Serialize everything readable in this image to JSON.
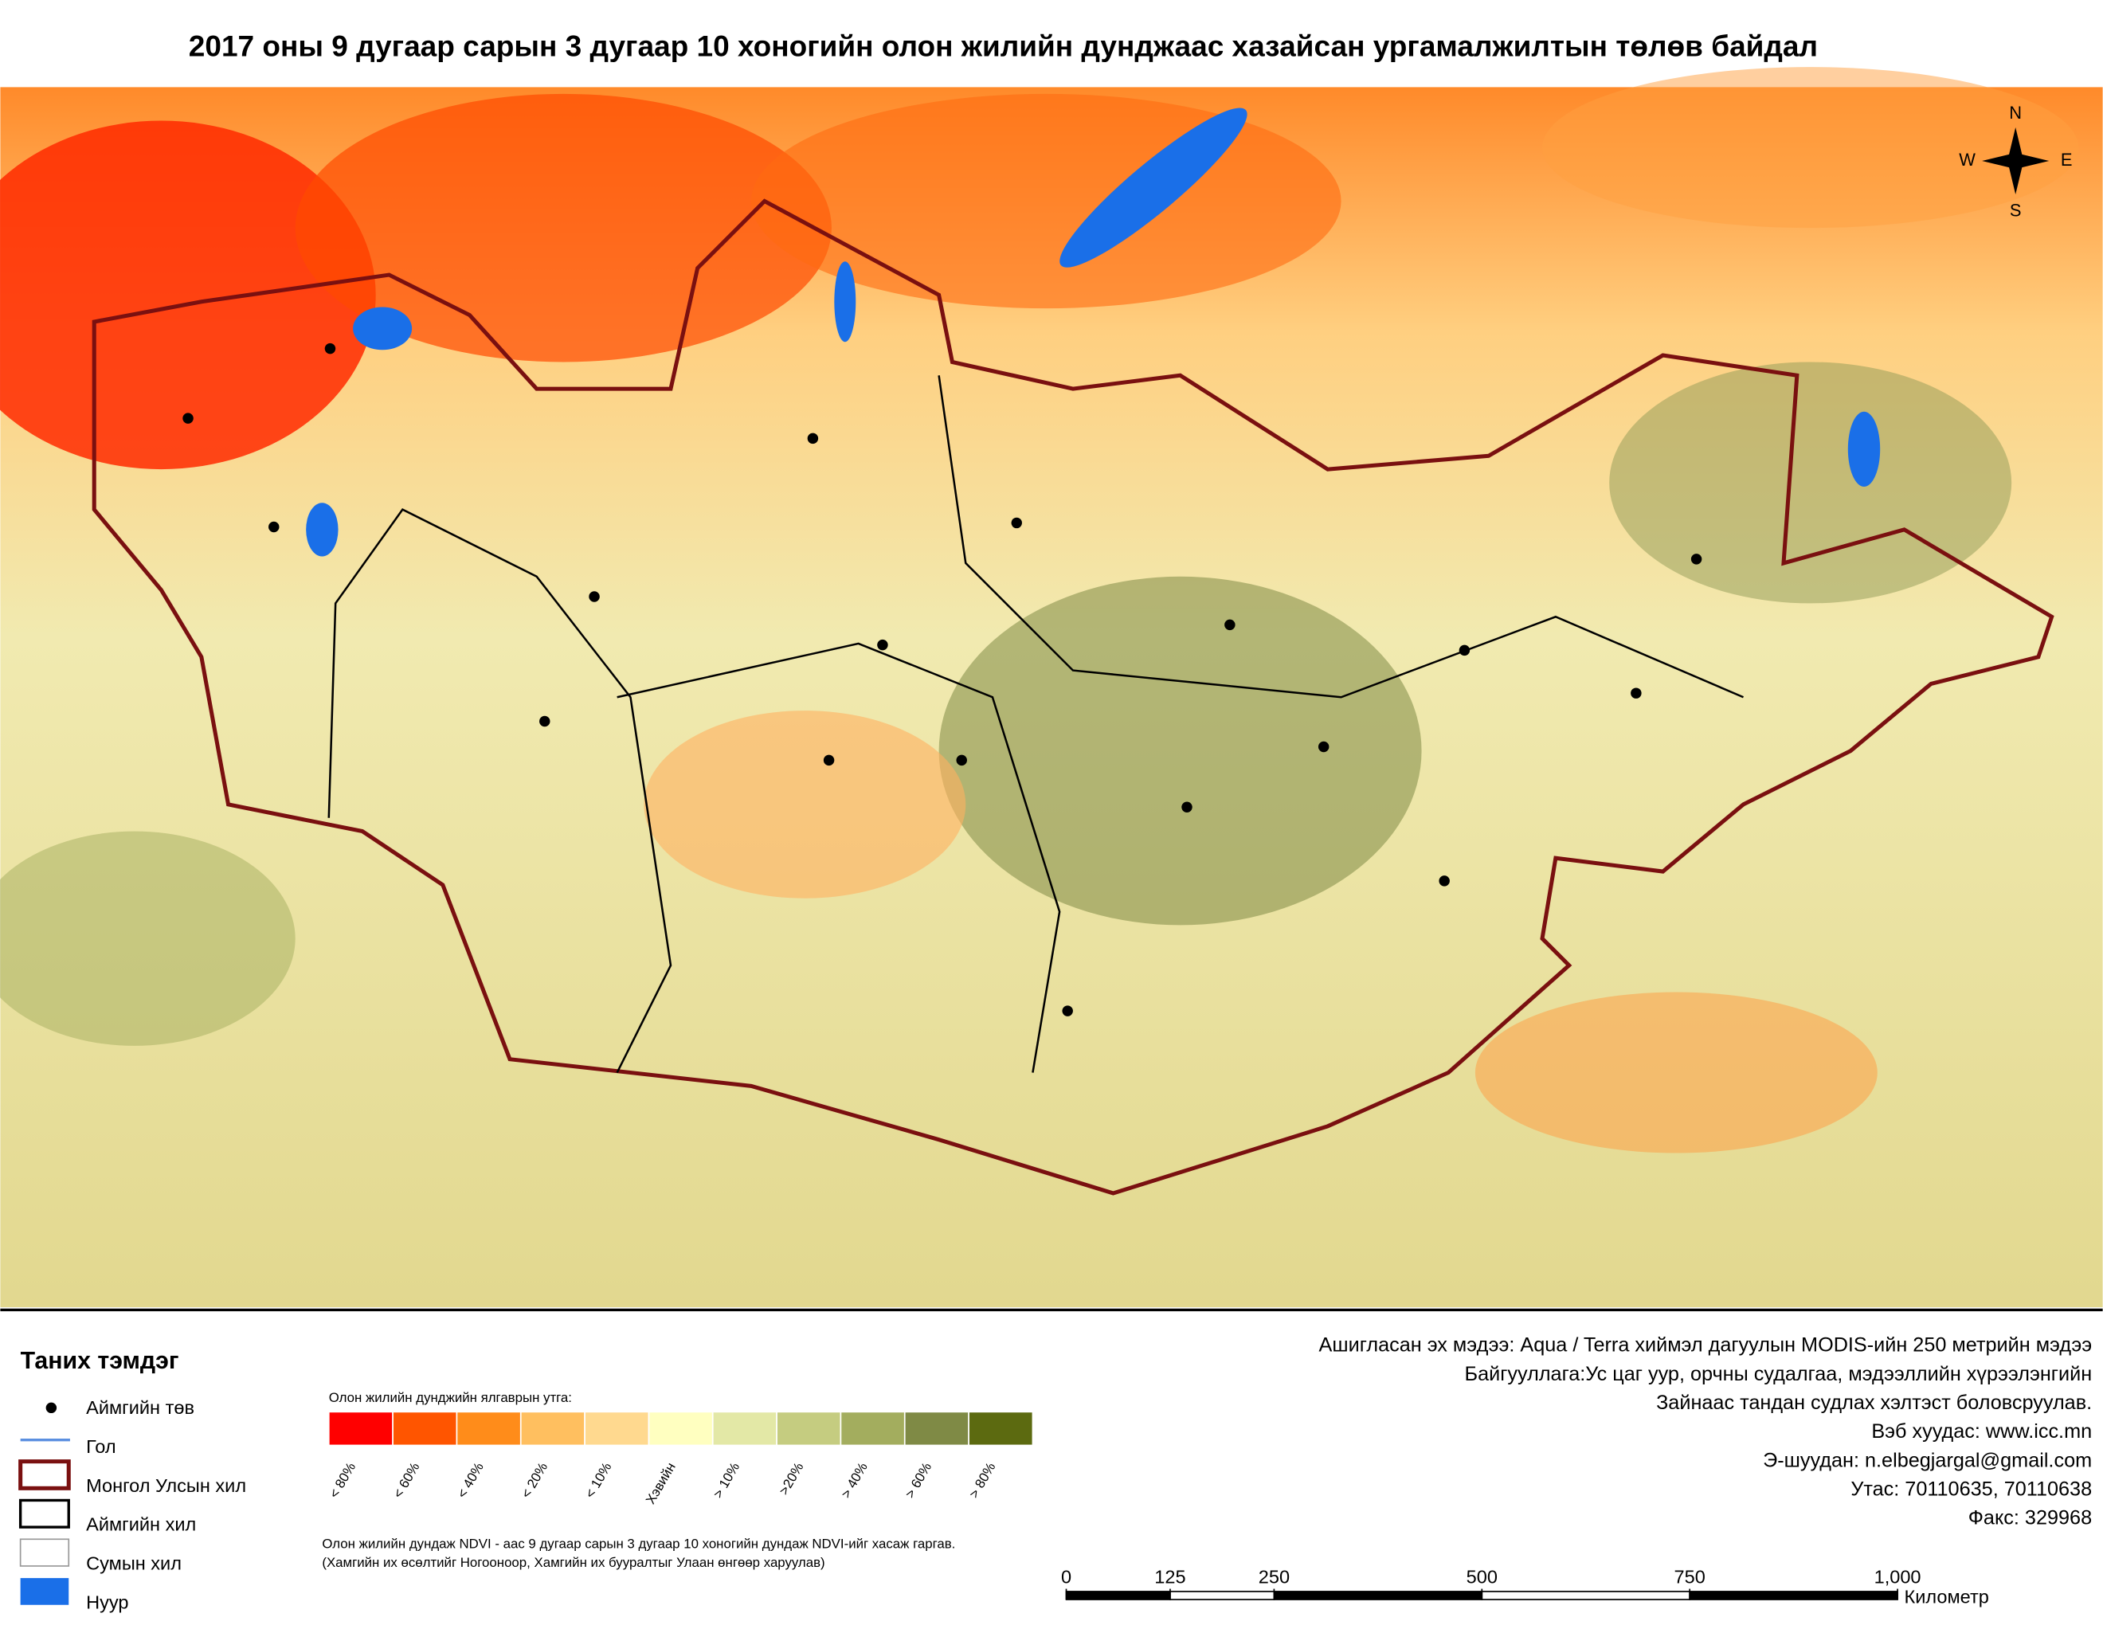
{
  "title": "2017 оны 9 дугаар сарын 3 дугаар 10 хоногийн олон жилийн дунджаас хазайсан ургамалжилтын төлөв байдал",
  "compass": {
    "n": "N",
    "w": "W",
    "e": "E",
    "s": "S"
  },
  "legend": {
    "title": "Таних тэмдэг",
    "items": [
      "Аймгийн төв",
      "Гол",
      "Монгол Улсын хил",
      "Аймгийн хил",
      "Сумын хил",
      "Нуур"
    ]
  },
  "color_scale": {
    "title": "Олон жилийн дунджийн ялгаврын утга:",
    "classes": [
      {
        "label": "< 80%",
        "color": "#ff0000"
      },
      {
        "label": "< 60%",
        "color": "#ff5500"
      },
      {
        "label": "< 40%",
        "color": "#ff8c1a"
      },
      {
        "label": "< 20%",
        "color": "#ffbf5f"
      },
      {
        "label": "< 10%",
        "color": "#ffd98f"
      },
      {
        "label": "Хэвийн",
        "color": "#ffffc0"
      },
      {
        "label": "> 10%",
        "color": "#e3e8a6"
      },
      {
        "label": ">20%",
        "color": "#c5cc80"
      },
      {
        "label": "> 40%",
        "color": "#a3ad5e"
      },
      {
        "label": "> 60%",
        "color": "#7f8a45"
      },
      {
        "label": "> 80%",
        "color": "#5c6a10"
      }
    ]
  },
  "note": [
    "Олон жилийн дундаж NDVI - аас 9 дугаар сарын 3 дугаар 10 хоногийн дундаж NDVI-ийг хасаж гаргав.",
    "(Хамгийн их өсөлтийг Ногооноор,  Хамгийн их бууралтыг Улаан өнгөөр харуулав)"
  ],
  "credits": [
    "Ашигласан эх мэдээ: Aqua / Terra хиймэл дагуулын MODIS-ийн 250 метрийн мэдээ",
    "Байгууллага:Ус цаг уур, орчны судалгаа, мэдээллийн хүрээлэнгийн",
    "Зайнаас тандан судлах хэлтэст боловсруулав.",
    "Вэб хуудас: www.icc.mn",
    "Э-шуудан: n.elbegjargal@gmail.com",
    "Утас: 70110635, 70110638",
    "Факс: 329968"
  ],
  "scale_bar": {
    "ticks": [
      0,
      125,
      250,
      500,
      750,
      {
        "value": 1000,
        "label": "1,000"
      }
    ],
    "unit": "Километр"
  }
}
